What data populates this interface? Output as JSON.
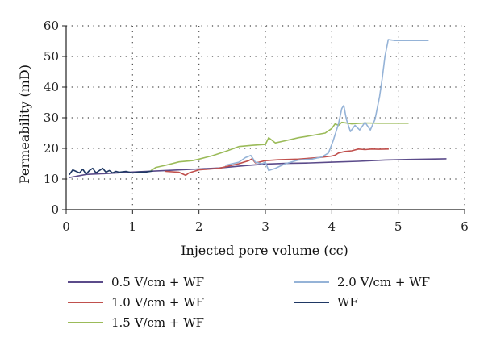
{
  "chart_data": {
    "type": "line",
    "title": "",
    "xlabel": "Injected pore volume (cc)",
    "ylabel": "Permeability (mD)",
    "xlim": [
      0,
      6
    ],
    "ylim": [
      0,
      60
    ],
    "xticks": [
      "0",
      "1",
      "2",
      "3",
      "4",
      "5",
      "6"
    ],
    "yticks": [
      "0",
      "10",
      "20",
      "30",
      "40",
      "50",
      "60"
    ],
    "grid": "dotted",
    "legend_position": "bottom",
    "series": [
      {
        "name": "0.5 V/cm + WF",
        "color": "#5b4b8a",
        "points": [
          [
            0.05,
            10.5
          ],
          [
            0.3,
            11.5
          ],
          [
            0.6,
            11.8
          ],
          [
            1.0,
            12.3
          ],
          [
            1.5,
            12.8
          ],
          [
            2.0,
            13.3
          ],
          [
            2.3,
            13.6
          ],
          [
            2.7,
            14.4
          ],
          [
            3.0,
            14.9
          ],
          [
            3.3,
            15.1
          ],
          [
            3.6,
            15.2
          ],
          [
            4.0,
            15.5
          ],
          [
            4.4,
            15.8
          ],
          [
            4.8,
            16.2
          ],
          [
            5.2,
            16.4
          ],
          [
            5.72,
            16.6
          ]
        ]
      },
      {
        "name": "1.0 V/cm + WF",
        "color": "#c0504d",
        "points": [
          [
            1.5,
            12.5
          ],
          [
            1.7,
            12.2
          ],
          [
            1.8,
            11.2
          ],
          [
            1.85,
            12.0
          ],
          [
            2.0,
            13.0
          ],
          [
            2.3,
            13.5
          ],
          [
            2.6,
            15.0
          ],
          [
            2.75,
            16.0
          ],
          [
            2.8,
            16.6
          ],
          [
            2.85,
            15.3
          ],
          [
            2.9,
            15.5
          ],
          [
            3.0,
            16.0
          ],
          [
            3.2,
            16.3
          ],
          [
            3.5,
            16.5
          ],
          [
            3.8,
            17.0
          ],
          [
            4.0,
            17.5
          ],
          [
            4.05,
            17.8
          ],
          [
            4.1,
            18.5
          ],
          [
            4.2,
            19.0
          ],
          [
            4.3,
            19.2
          ],
          [
            4.4,
            19.8
          ],
          [
            4.5,
            19.6
          ],
          [
            4.6,
            19.8
          ],
          [
            4.7,
            19.7
          ],
          [
            4.85,
            19.8
          ]
        ]
      },
      {
        "name": "1.5 V/cm + WF",
        "color": "#9bbb59",
        "points": [
          [
            1.28,
            12.8
          ],
          [
            1.35,
            13.8
          ],
          [
            1.5,
            14.5
          ],
          [
            1.7,
            15.6
          ],
          [
            1.9,
            16.0
          ],
          [
            2.0,
            16.5
          ],
          [
            2.2,
            17.6
          ],
          [
            2.4,
            19.0
          ],
          [
            2.6,
            20.6
          ],
          [
            2.8,
            21.0
          ],
          [
            3.0,
            21.3
          ],
          [
            3.05,
            23.5
          ],
          [
            3.15,
            21.8
          ],
          [
            3.3,
            22.5
          ],
          [
            3.5,
            23.5
          ],
          [
            3.7,
            24.2
          ],
          [
            3.9,
            25.0
          ],
          [
            4.0,
            26.5
          ],
          [
            4.05,
            28.0
          ],
          [
            4.1,
            27.5
          ],
          [
            4.15,
            28.5
          ],
          [
            4.3,
            28.0
          ],
          [
            4.5,
            28.3
          ],
          [
            4.7,
            28.2
          ],
          [
            4.9,
            28.2
          ],
          [
            5.15,
            28.2
          ]
        ]
      },
      {
        "name": "2.0 V/cm + WF",
        "color": "#95b3d7",
        "points": [
          [
            2.4,
            14.5
          ],
          [
            2.6,
            15.5
          ],
          [
            2.7,
            17.0
          ],
          [
            2.78,
            17.7
          ],
          [
            2.85,
            15.5
          ],
          [
            2.95,
            15.0
          ],
          [
            3.0,
            15.5
          ],
          [
            3.05,
            12.8
          ],
          [
            3.15,
            13.5
          ],
          [
            3.3,
            15.0
          ],
          [
            3.5,
            16.2
          ],
          [
            3.7,
            16.5
          ],
          [
            3.85,
            17.2
          ],
          [
            3.95,
            18.5
          ],
          [
            4.02,
            22.5
          ],
          [
            4.1,
            28.0
          ],
          [
            4.15,
            33.0
          ],
          [
            4.18,
            34.0
          ],
          [
            4.22,
            29.5
          ],
          [
            4.28,
            25.5
          ],
          [
            4.35,
            27.5
          ],
          [
            4.42,
            26.0
          ],
          [
            4.5,
            28.5
          ],
          [
            4.58,
            26.0
          ],
          [
            4.65,
            29.5
          ],
          [
            4.72,
            37.0
          ],
          [
            4.76,
            43.0
          ],
          [
            4.8,
            50.0
          ],
          [
            4.85,
            55.5
          ],
          [
            4.95,
            55.2
          ],
          [
            5.2,
            55.2
          ],
          [
            5.45,
            55.2
          ]
        ]
      },
      {
        "name": "WF",
        "color": "#1f3864",
        "points": [
          [
            0.05,
            11.5
          ],
          [
            0.1,
            13.0
          ],
          [
            0.15,
            12.5
          ],
          [
            0.2,
            12.0
          ],
          [
            0.25,
            13.2
          ],
          [
            0.3,
            11.6
          ],
          [
            0.35,
            12.8
          ],
          [
            0.4,
            13.5
          ],
          [
            0.45,
            12.0
          ],
          [
            0.5,
            12.8
          ],
          [
            0.55,
            13.5
          ],
          [
            0.6,
            12.2
          ],
          [
            0.65,
            12.8
          ],
          [
            0.7,
            12.0
          ],
          [
            0.75,
            12.5
          ],
          [
            0.8,
            12.2
          ],
          [
            0.9,
            12.5
          ],
          [
            1.0,
            12.0
          ],
          [
            1.1,
            12.3
          ],
          [
            1.2,
            12.3
          ],
          [
            1.3,
            12.6
          ]
        ]
      }
    ]
  }
}
